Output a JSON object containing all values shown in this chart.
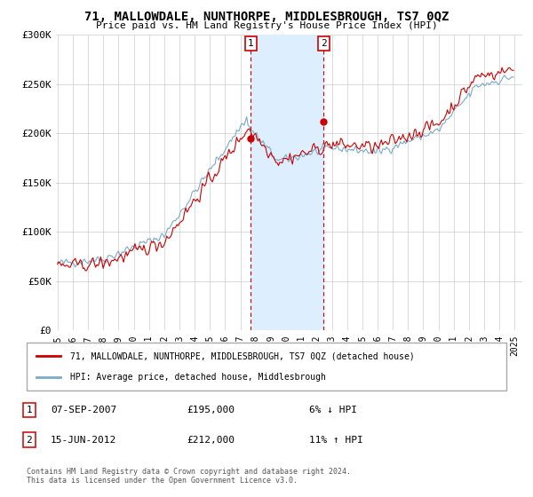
{
  "title": "71, MALLOWDALE, NUNTHORPE, MIDDLESBROUGH, TS7 0QZ",
  "subtitle": "Price paid vs. HM Land Registry's House Price Index (HPI)",
  "ylim": [
    0,
    300000
  ],
  "yticks": [
    0,
    50000,
    100000,
    150000,
    200000,
    250000,
    300000
  ],
  "ytick_labels": [
    "£0",
    "£50K",
    "£100K",
    "£150K",
    "£200K",
    "£250K",
    "£300K"
  ],
  "sale1_x": 2007.68,
  "sale1_y": 195000,
  "sale2_x": 2012.45,
  "sale2_y": 212000,
  "sale1_date": "07-SEP-2007",
  "sale1_price": "£195,000",
  "sale1_hpi": "6% ↓ HPI",
  "sale2_date": "15-JUN-2012",
  "sale2_price": "£212,000",
  "sale2_hpi": "11% ↑ HPI",
  "red_color": "#cc0000",
  "blue_color": "#7aaac8",
  "shade_color": "#ddeeff",
  "legend_red": "71, MALLOWDALE, NUNTHORPE, MIDDLESBROUGH, TS7 0QZ (detached house)",
  "legend_blue": "HPI: Average price, detached house, Middlesbrough",
  "footnote_line1": "Contains HM Land Registry data © Crown copyright and database right 2024.",
  "footnote_line2": "This data is licensed under the Open Government Licence v3.0.",
  "bg": "#ffffff",
  "grid_color": "#cccccc",
  "xmin": 1995,
  "xmax": 2025
}
